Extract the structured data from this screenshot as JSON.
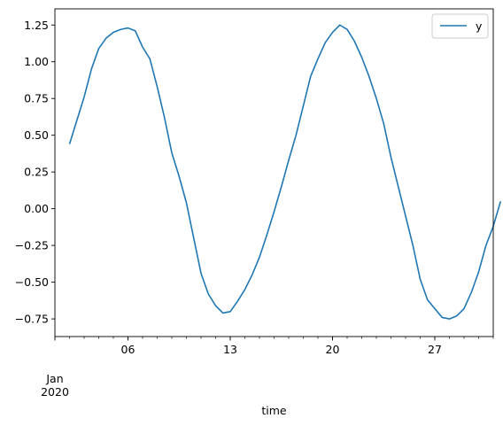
{
  "chart_data": {
    "type": "line",
    "xlabel": "time",
    "ylabel": "",
    "grid": false,
    "legend_position": "top-right",
    "x_range": [
      "2020-01-01",
      "2020-01-31"
    ],
    "ylim": [
      -0.87,
      1.36
    ],
    "x_major_ticks": [
      {
        "date": "2020-01-06",
        "label": "06"
      },
      {
        "date": "2020-01-13",
        "label": "13"
      },
      {
        "date": "2020-01-20",
        "label": "20"
      },
      {
        "date": "2020-01-27",
        "label": "27"
      }
    ],
    "x_secondary_label": {
      "month": "Jan",
      "year": "2020"
    },
    "y_ticks": [
      {
        "value": -0.75,
        "label": "−0.75"
      },
      {
        "value": -0.5,
        "label": "−0.50"
      },
      {
        "value": -0.25,
        "label": "−0.25"
      },
      {
        "value": 0.0,
        "label": "0.00"
      },
      {
        "value": 0.25,
        "label": "0.25"
      },
      {
        "value": 0.5,
        "label": "0.50"
      },
      {
        "value": 0.75,
        "label": "0.75"
      },
      {
        "value": 1.0,
        "label": "1.00"
      },
      {
        "value": 1.25,
        "label": "1.25"
      }
    ],
    "series": [
      {
        "name": "y",
        "color": "#1f77b4",
        "points": [
          [
            "2020-01-02T00:00",
            0.44
          ],
          [
            "2020-01-02T12:00",
            0.6
          ],
          [
            "2020-01-03T00:00",
            0.76
          ],
          [
            "2020-01-03T12:00",
            0.95
          ],
          [
            "2020-01-04T00:00",
            1.09
          ],
          [
            "2020-01-04T12:00",
            1.16
          ],
          [
            "2020-01-05T00:00",
            1.2
          ],
          [
            "2020-01-05T12:00",
            1.22
          ],
          [
            "2020-01-06T00:00",
            1.23
          ],
          [
            "2020-01-06T12:00",
            1.21
          ],
          [
            "2020-01-07T00:00",
            1.1
          ],
          [
            "2020-01-07T12:00",
            1.02
          ],
          [
            "2020-01-08T00:00",
            0.83
          ],
          [
            "2020-01-08T12:00",
            0.62
          ],
          [
            "2020-01-09T00:00",
            0.38
          ],
          [
            "2020-01-09T12:00",
            0.22
          ],
          [
            "2020-01-10T00:00",
            0.04
          ],
          [
            "2020-01-10T12:00",
            -0.2
          ],
          [
            "2020-01-11T00:00",
            -0.44
          ],
          [
            "2020-01-11T12:00",
            -0.58
          ],
          [
            "2020-01-12T00:00",
            -0.66
          ],
          [
            "2020-01-12T12:00",
            -0.71
          ],
          [
            "2020-01-13T00:00",
            -0.7
          ],
          [
            "2020-01-13T12:00",
            -0.63
          ],
          [
            "2020-01-14T00:00",
            -0.55
          ],
          [
            "2020-01-14T12:00",
            -0.45
          ],
          [
            "2020-01-15T00:00",
            -0.33
          ],
          [
            "2020-01-15T12:00",
            -0.18
          ],
          [
            "2020-01-16T00:00",
            -0.02
          ],
          [
            "2020-01-16T12:00",
            0.15
          ],
          [
            "2020-01-17T00:00",
            0.33
          ],
          [
            "2020-01-17T12:00",
            0.5
          ],
          [
            "2020-01-18T00:00",
            0.7
          ],
          [
            "2020-01-18T12:00",
            0.9
          ],
          [
            "2020-01-19T00:00",
            1.02
          ],
          [
            "2020-01-19T12:00",
            1.13
          ],
          [
            "2020-01-20T00:00",
            1.2
          ],
          [
            "2020-01-20T12:00",
            1.25
          ],
          [
            "2020-01-21T00:00",
            1.22
          ],
          [
            "2020-01-21T12:00",
            1.14
          ],
          [
            "2020-01-22T00:00",
            1.03
          ],
          [
            "2020-01-22T12:00",
            0.9
          ],
          [
            "2020-01-23T00:00",
            0.75
          ],
          [
            "2020-01-23T12:00",
            0.58
          ],
          [
            "2020-01-24T00:00",
            0.35
          ],
          [
            "2020-01-24T12:00",
            0.15
          ],
          [
            "2020-01-25T00:00",
            -0.05
          ],
          [
            "2020-01-25T12:00",
            -0.25
          ],
          [
            "2020-01-26T00:00",
            -0.48
          ],
          [
            "2020-01-26T12:00",
            -0.62
          ],
          [
            "2020-01-27T00:00",
            -0.68
          ],
          [
            "2020-01-27T12:00",
            -0.74
          ],
          [
            "2020-01-28T00:00",
            -0.75
          ],
          [
            "2020-01-28T12:00",
            -0.73
          ],
          [
            "2020-01-29T00:00",
            -0.68
          ],
          [
            "2020-01-29T12:00",
            -0.57
          ],
          [
            "2020-01-30T00:00",
            -0.43
          ],
          [
            "2020-01-30T12:00",
            -0.25
          ],
          [
            "2020-01-31T00:00",
            -0.12
          ],
          [
            "2020-01-31T12:00",
            0.05
          ]
        ]
      }
    ]
  }
}
